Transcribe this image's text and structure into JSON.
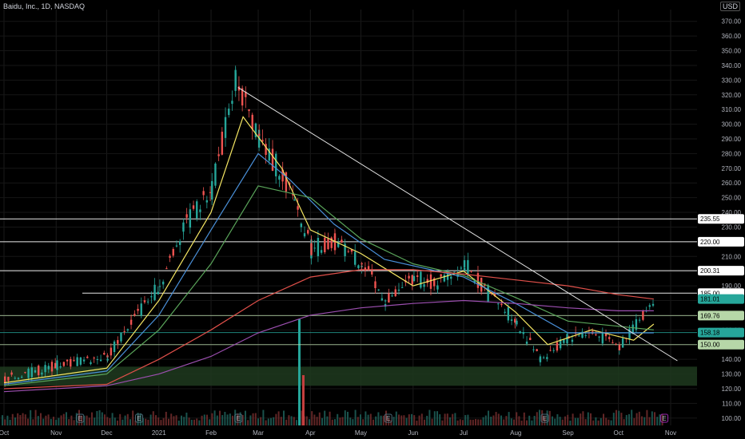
{
  "header": {
    "title": "Baidu, Inc., 1D, NASDAQ",
    "currency": "USD"
  },
  "chart_data": {
    "type": "candlestick",
    "title": "Baidu, Inc., 1D, NASDAQ",
    "ylim": [
      95,
      378
    ],
    "y_ticks": [
      100,
      110,
      120,
      130,
      140,
      150,
      160,
      170,
      180,
      190,
      200,
      210,
      220,
      230,
      240,
      250,
      260,
      270,
      280,
      290,
      300,
      310,
      320,
      330,
      340,
      350,
      360,
      370
    ],
    "x_ticks": [
      "Oct",
      "Nov",
      "Dec",
      "2021",
      "Feb",
      "Mar",
      "Apr",
      "May",
      "Jun",
      "Jul",
      "Aug",
      "Sep",
      "Oct",
      "Nov"
    ],
    "horizontal_levels": [
      {
        "label": "235.55",
        "value": 235.55,
        "color": "#ffffff"
      },
      {
        "label": "220.00",
        "value": 220.0,
        "color": "#ffffff"
      },
      {
        "label": "200.31",
        "value": 200.31,
        "color": "#ffffff"
      },
      {
        "label": "185.00",
        "value": 185.0,
        "color": "#ffffff"
      },
      {
        "label": "181.01",
        "value": 181.01,
        "color": "#26a69a"
      },
      {
        "label": "169.76",
        "value": 169.76,
        "color": "#b6d7a8"
      },
      {
        "label": "158.18",
        "value": 158.18,
        "color": "#26a69a"
      },
      {
        "label": "150.00",
        "value": 150.0,
        "color": "#b6d7a8"
      }
    ],
    "support_zone": [
      122,
      135
    ],
    "trendline": {
      "from": {
        "date": "2021-02-17",
        "price": 325
      },
      "to": {
        "date": "2021-11-05",
        "price": 139
      }
    },
    "price_path": [
      {
        "date": "2020-10-01",
        "price": 126
      },
      {
        "date": "2020-11-01",
        "price": 136
      },
      {
        "date": "2020-12-01",
        "price": 142
      },
      {
        "date": "2020-12-15",
        "price": 165
      },
      {
        "date": "2021-01-01",
        "price": 190
      },
      {
        "date": "2021-01-15",
        "price": 230
      },
      {
        "date": "2021-02-01",
        "price": 255
      },
      {
        "date": "2021-02-15",
        "price": 330
      },
      {
        "date": "2021-03-01",
        "price": 290
      },
      {
        "date": "2021-03-15",
        "price": 265
      },
      {
        "date": "2021-03-22",
        "price": 250
      },
      {
        "date": "2021-04-01",
        "price": 215
      },
      {
        "date": "2021-04-15",
        "price": 220
      },
      {
        "date": "2021-05-01",
        "price": 205
      },
      {
        "date": "2021-05-15",
        "price": 180
      },
      {
        "date": "2021-06-01",
        "price": 195
      },
      {
        "date": "2021-06-15",
        "price": 192
      },
      {
        "date": "2021-07-01",
        "price": 205
      },
      {
        "date": "2021-07-15",
        "price": 185
      },
      {
        "date": "2021-08-01",
        "price": 165
      },
      {
        "date": "2021-08-15",
        "price": 140
      },
      {
        "date": "2021-09-01",
        "price": 155
      },
      {
        "date": "2021-09-15",
        "price": 158
      },
      {
        "date": "2021-10-01",
        "price": 148
      },
      {
        "date": "2021-10-15",
        "price": 170
      },
      {
        "date": "2021-10-22",
        "price": 181
      }
    ],
    "moving_averages": [
      {
        "color": "#f5e663",
        "points": [
          {
            "date": "2020-10-01",
            "price": 124
          },
          {
            "date": "2020-12-01",
            "price": 134
          },
          {
            "date": "2021-01-01",
            "price": 180
          },
          {
            "date": "2021-02-01",
            "price": 240
          },
          {
            "date": "2021-02-20",
            "price": 305
          },
          {
            "date": "2021-03-15",
            "price": 270
          },
          {
            "date": "2021-04-01",
            "price": 228
          },
          {
            "date": "2021-05-01",
            "price": 212
          },
          {
            "date": "2021-06-01",
            "price": 190
          },
          {
            "date": "2021-07-01",
            "price": 200
          },
          {
            "date": "2021-08-01",
            "price": 172
          },
          {
            "date": "2021-08-20",
            "price": 150
          },
          {
            "date": "2021-09-15",
            "price": 160
          },
          {
            "date": "2021-10-10",
            "price": 153
          },
          {
            "date": "2021-10-22",
            "price": 164
          }
        ]
      },
      {
        "color": "#4a90d9",
        "points": [
          {
            "date": "2020-10-01",
            "price": 123
          },
          {
            "date": "2020-12-01",
            "price": 132
          },
          {
            "date": "2021-01-01",
            "price": 170
          },
          {
            "date": "2021-02-01",
            "price": 228
          },
          {
            "date": "2021-03-01",
            "price": 280
          },
          {
            "date": "2021-03-20",
            "price": 262
          },
          {
            "date": "2021-04-15",
            "price": 232
          },
          {
            "date": "2021-05-15",
            "price": 208
          },
          {
            "date": "2021-07-01",
            "price": 196
          },
          {
            "date": "2021-08-01",
            "price": 178
          },
          {
            "date": "2021-09-01",
            "price": 158
          },
          {
            "date": "2021-10-22",
            "price": 158
          }
        ]
      },
      {
        "color": "#5aa55a",
        "points": [
          {
            "date": "2020-10-01",
            "price": 122
          },
          {
            "date": "2020-12-01",
            "price": 130
          },
          {
            "date": "2021-01-01",
            "price": 160
          },
          {
            "date": "2021-02-01",
            "price": 205
          },
          {
            "date": "2021-03-01",
            "price": 258
          },
          {
            "date": "2021-04-01",
            "price": 250
          },
          {
            "date": "2021-05-01",
            "price": 222
          },
          {
            "date": "2021-06-01",
            "price": 205
          },
          {
            "date": "2021-07-01",
            "price": 197
          },
          {
            "date": "2021-08-01",
            "price": 182
          },
          {
            "date": "2021-09-01",
            "price": 166
          },
          {
            "date": "2021-10-22",
            "price": 160
          }
        ]
      },
      {
        "color": "#e0504a",
        "points": [
          {
            "date": "2020-10-01",
            "price": 120
          },
          {
            "date": "2020-12-01",
            "price": 123
          },
          {
            "date": "2021-01-01",
            "price": 140
          },
          {
            "date": "2021-02-01",
            "price": 160
          },
          {
            "date": "2021-03-01",
            "price": 180
          },
          {
            "date": "2021-04-01",
            "price": 196
          },
          {
            "date": "2021-05-01",
            "price": 201
          },
          {
            "date": "2021-06-01",
            "price": 201
          },
          {
            "date": "2021-07-01",
            "price": 198
          },
          {
            "date": "2021-08-01",
            "price": 194
          },
          {
            "date": "2021-09-01",
            "price": 190
          },
          {
            "date": "2021-10-01",
            "price": 184
          },
          {
            "date": "2021-10-22",
            "price": 181
          }
        ]
      },
      {
        "color": "#9c4fb0",
        "points": [
          {
            "date": "2020-10-01",
            "price": 118
          },
          {
            "date": "2020-12-01",
            "price": 122
          },
          {
            "date": "2021-01-01",
            "price": 130
          },
          {
            "date": "2021-02-01",
            "price": 142
          },
          {
            "date": "2021-03-01",
            "price": 158
          },
          {
            "date": "2021-04-01",
            "price": 170
          },
          {
            "date": "2021-05-01",
            "price": 175
          },
          {
            "date": "2021-06-01",
            "price": 178
          },
          {
            "date": "2021-07-01",
            "price": 180
          },
          {
            "date": "2021-08-01",
            "price": 178
          },
          {
            "date": "2021-09-01",
            "price": 175
          },
          {
            "date": "2021-10-01",
            "price": 173
          },
          {
            "date": "2021-10-22",
            "price": 173
          }
        ]
      }
    ],
    "earnings_markers": [
      "E",
      "E",
      "E",
      "E",
      "E",
      "E"
    ]
  }
}
